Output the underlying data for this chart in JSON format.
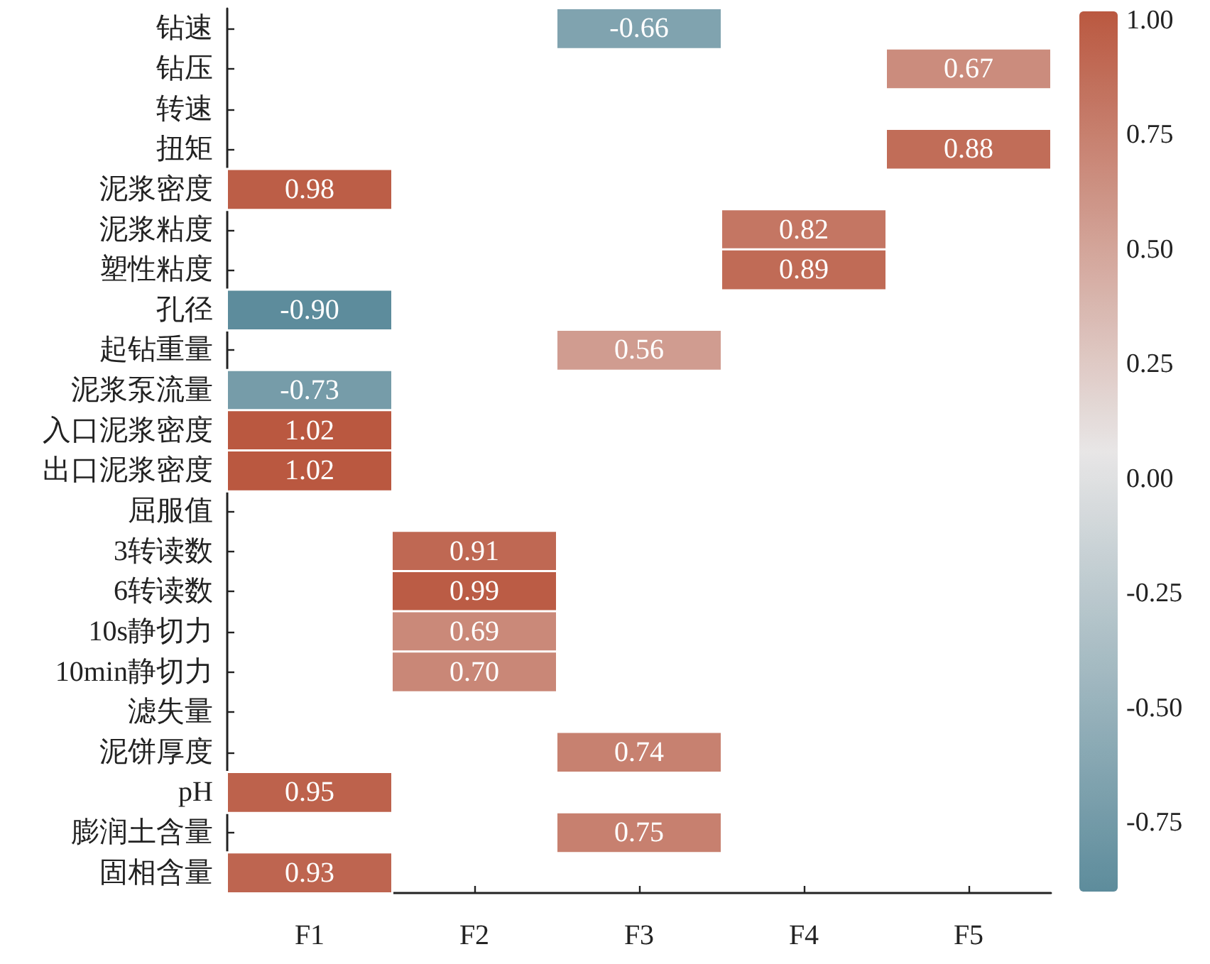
{
  "chart_data": {
    "type": "heatmap",
    "categories": [
      "F1",
      "F2",
      "F3",
      "F4",
      "F5"
    ],
    "y_categories": [
      "钻速",
      "钻压",
      "转速",
      "扭矩",
      "泥浆密度",
      "泥浆粘度",
      "塑性粘度",
      "孔径",
      "起钻重量",
      "泥浆泵流量",
      "入口泥浆密度",
      "出口泥浆密度",
      "屈服值",
      "3转读数",
      "6转读数",
      "10s静切力",
      "10min静切力",
      "滤失量",
      "泥饼厚度",
      "pH",
      "膨润土含量",
      "固相含量"
    ],
    "cells": [
      [
        null,
        null,
        -0.66,
        null,
        null
      ],
      [
        null,
        null,
        null,
        null,
        0.67
      ],
      [
        null,
        null,
        null,
        null,
        null
      ],
      [
        null,
        null,
        null,
        null,
        0.88
      ],
      [
        0.98,
        null,
        null,
        null,
        null
      ],
      [
        null,
        null,
        null,
        0.82,
        null
      ],
      [
        null,
        null,
        null,
        0.89,
        null
      ],
      [
        -0.9,
        null,
        null,
        null,
        null
      ],
      [
        null,
        null,
        0.56,
        null,
        null
      ],
      [
        -0.73,
        null,
        null,
        null,
        null
      ],
      [
        1.02,
        null,
        null,
        null,
        null
      ],
      [
        1.02,
        null,
        null,
        null,
        null
      ],
      [
        null,
        null,
        null,
        null,
        null
      ],
      [
        null,
        0.91,
        null,
        null,
        null
      ],
      [
        null,
        0.99,
        null,
        null,
        null
      ],
      [
        null,
        0.69,
        null,
        null,
        null
      ],
      [
        null,
        0.7,
        null,
        null,
        null
      ],
      [
        null,
        null,
        null,
        null,
        null
      ],
      [
        null,
        null,
        0.74,
        null,
        null
      ],
      [
        0.95,
        null,
        null,
        null,
        null
      ],
      [
        null,
        null,
        0.75,
        null,
        null
      ],
      [
        0.93,
        null,
        null,
        null,
        null
      ]
    ],
    "cell_labels": [
      [
        null,
        null,
        "-0.66",
        null,
        null
      ],
      [
        null,
        null,
        null,
        null,
        "0.67"
      ],
      [
        null,
        null,
        null,
        null,
        null
      ],
      [
        null,
        null,
        null,
        null,
        "0.88"
      ],
      [
        "0.98",
        null,
        null,
        null,
        null
      ],
      [
        null,
        null,
        null,
        "0.82",
        null
      ],
      [
        null,
        null,
        null,
        "0.89",
        null
      ],
      [
        "-0.90",
        null,
        null,
        null,
        null
      ],
      [
        null,
        null,
        "0.56",
        null,
        null
      ],
      [
        "-0.73",
        null,
        null,
        null,
        null
      ],
      [
        "1.02",
        null,
        null,
        null,
        null
      ],
      [
        "1.02",
        null,
        null,
        null,
        null
      ],
      [
        null,
        null,
        null,
        null,
        null
      ],
      [
        null,
        "0.91",
        null,
        null,
        null
      ],
      [
        null,
        "0.99",
        null,
        null,
        null
      ],
      [
        null,
        "0.69",
        null,
        null,
        null
      ],
      [
        null,
        "0.70",
        null,
        null,
        null
      ],
      [
        null,
        null,
        null,
        null,
        null
      ],
      [
        null,
        null,
        "0.74",
        null,
        null
      ],
      [
        "0.95",
        null,
        null,
        null,
        null
      ],
      [
        null,
        null,
        "0.75",
        null,
        null
      ],
      [
        "0.93",
        null,
        null,
        null,
        null
      ]
    ],
    "clim": [
      -0.9,
      1.02
    ],
    "cticks": [
      {
        "value": -0.75,
        "label": "-0.75"
      },
      {
        "value": -0.5,
        "label": "-0.50"
      },
      {
        "value": -0.25,
        "label": "-0.25"
      },
      {
        "value": 0,
        "label": "0.00"
      },
      {
        "value": 0.25,
        "label": "0.25"
      },
      {
        "value": 0.5,
        "label": "0.50"
      },
      {
        "value": 0.75,
        "label": "0.75"
      },
      {
        "value": 1,
        "label": "1.00"
      }
    ]
  }
}
